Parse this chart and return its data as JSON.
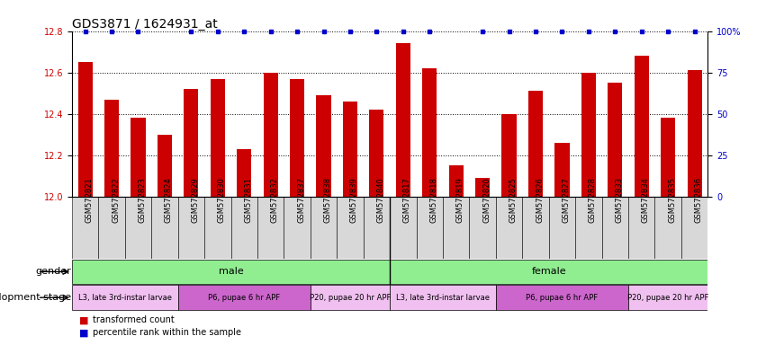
{
  "title": "GDS3871 / 1624931_at",
  "samples": [
    "GSM572821",
    "GSM572822",
    "GSM572823",
    "GSM572824",
    "GSM572829",
    "GSM572830",
    "GSM572831",
    "GSM572832",
    "GSM572837",
    "GSM572838",
    "GSM572839",
    "GSM572840",
    "GSM572817",
    "GSM572818",
    "GSM572819",
    "GSM572820",
    "GSM572825",
    "GSM572826",
    "GSM572827",
    "GSM572828",
    "GSM572833",
    "GSM572834",
    "GSM572835",
    "GSM572836"
  ],
  "bar_values": [
    12.65,
    12.47,
    12.38,
    12.3,
    12.52,
    12.57,
    12.23,
    12.6,
    12.57,
    12.49,
    12.46,
    12.42,
    12.74,
    12.62,
    12.15,
    12.09,
    12.4,
    12.51,
    12.26,
    12.6,
    12.55,
    12.68,
    12.38,
    12.61
  ],
  "percentile_shown": [
    true,
    true,
    true,
    false,
    true,
    true,
    true,
    true,
    true,
    true,
    true,
    true,
    true,
    true,
    false,
    true,
    true,
    true,
    true,
    true,
    true,
    true,
    true,
    true
  ],
  "bar_color": "#cc0000",
  "percentile_color": "#0000cc",
  "ymin": 12.0,
  "ymax": 12.8,
  "yticks": [
    12.0,
    12.2,
    12.4,
    12.6,
    12.8
  ],
  "right_yticks": [
    0,
    25,
    50,
    75,
    100
  ],
  "right_ytick_labels": [
    "0",
    "25",
    "50",
    "75",
    "100%"
  ],
  "gender_groups": [
    {
      "label": "male",
      "start": 0,
      "end": 12,
      "color": "#90ee90"
    },
    {
      "label": "female",
      "start": 12,
      "end": 24,
      "color": "#90ee90"
    }
  ],
  "dev_stage_groups": [
    {
      "label": "L3, late 3rd-instar larvae",
      "start": 0,
      "end": 4,
      "color": "#f0c0f0"
    },
    {
      "label": "P6, pupae 6 hr APF",
      "start": 4,
      "end": 9,
      "color": "#cc66cc"
    },
    {
      "label": "P20, pupae 20 hr APF",
      "start": 9,
      "end": 12,
      "color": "#f0c0f0"
    },
    {
      "label": "L3, late 3rd-instar larvae",
      "start": 12,
      "end": 16,
      "color": "#f0c0f0"
    },
    {
      "label": "P6, pupae 6 hr APF",
      "start": 16,
      "end": 21,
      "color": "#cc66cc"
    },
    {
      "label": "P20, pupae 20 hr APF",
      "start": 21,
      "end": 24,
      "color": "#f0c0f0"
    }
  ],
  "gender_label": "gender",
  "dev_label": "development stage",
  "legend_bar": "transformed count",
  "legend_percentile": "percentile rank within the sample",
  "bar_width": 0.55,
  "title_fontsize": 10,
  "tick_fontsize": 7,
  "sample_fontsize": 6,
  "annotation_fontsize": 8,
  "label_fontsize": 8
}
